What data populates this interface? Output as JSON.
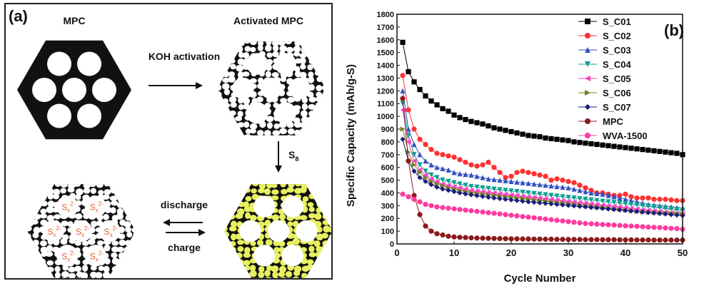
{
  "panel_a": {
    "tag": "(a)",
    "title_left": "MPC",
    "title_right": "Activated MPC",
    "arrow_top_label": "KOH activation",
    "arrow_down_label": "S",
    "arrow_down_sub": "8",
    "discharge_label": "discharge",
    "charge_label": "charge",
    "sulfide_label": "S",
    "sulfide_sub": "x",
    "sulfide_sup": "2-",
    "colors": {
      "carbon": "#111111",
      "sulfur_fill": "#e8f060",
      "sulfide_text": "#e06030"
    }
  },
  "panel_b": {
    "tag": "(b)"
  },
  "chart_data": {
    "type": "line",
    "xlabel": "Cycle Number",
    "ylabel": "Specific Capacity (mAh/g-S)",
    "xlim": [
      0,
      50
    ],
    "ylim": [
      0,
      1800
    ],
    "xticks": [
      "0",
      "10",
      "20",
      "30",
      "40",
      "50"
    ],
    "yticks": [
      "0",
      "100",
      "200",
      "300",
      "400",
      "500",
      "600",
      "700",
      "800",
      "900",
      "1000",
      "1100",
      "1200",
      "1300",
      "1400",
      "1500",
      "1600",
      "1700",
      "1800"
    ],
    "legend_position": "top-right",
    "series": [
      {
        "name": "S_C01",
        "color": "#000000",
        "marker": "square",
        "values": [
          1580,
          1350,
          1270,
          1210,
          1160,
          1120,
          1090,
          1060,
          1040,
          1010,
          990,
          975,
          960,
          950,
          940,
          925,
          910,
          900,
          890,
          880,
          870,
          860,
          850,
          845,
          840,
          830,
          825,
          820,
          815,
          810,
          800,
          795,
          790,
          785,
          780,
          775,
          770,
          765,
          760,
          755,
          750,
          745,
          740,
          735,
          730,
          725,
          720,
          715,
          710,
          700
        ]
      },
      {
        "name": "S_C02",
        "color": "#ff3030",
        "marker": "circle",
        "values": [
          1320,
          1050,
          900,
          820,
          780,
          740,
          710,
          700,
          690,
          680,
          660,
          640,
          620,
          610,
          620,
          640,
          600,
          560,
          520,
          530,
          560,
          570,
          560,
          550,
          540,
          530,
          500,
          510,
          500,
          490,
          480,
          460,
          440,
          420,
          400,
          400,
          390,
          380,
          380,
          390,
          370,
          360,
          360,
          360,
          350,
          350,
          350,
          345,
          340,
          340
        ]
      },
      {
        "name": "S_C03",
        "color": "#3050c0",
        "marker": "triangle",
        "values": [
          1200,
          900,
          780,
          700,
          650,
          620,
          600,
          590,
          580,
          560,
          550,
          545,
          540,
          530,
          520,
          510,
          505,
          500,
          495,
          490,
          485,
          480,
          475,
          470,
          465,
          460,
          455,
          450,
          445,
          440,
          430,
          420,
          410,
          400,
          395,
          390,
          380,
          370,
          360,
          350,
          340,
          330,
          320,
          310,
          305,
          300,
          295,
          290,
          285,
          280
        ]
      },
      {
        "name": "S_C04",
        "color": "#10a090",
        "marker": "triangle-down",
        "values": [
          1100,
          850,
          700,
          620,
          570,
          540,
          520,
          500,
          490,
          480,
          470,
          460,
          450,
          445,
          440,
          435,
          430,
          425,
          420,
          415,
          410,
          405,
          400,
          395,
          390,
          385,
          380,
          375,
          370,
          365,
          360,
          355,
          350,
          345,
          340,
          335,
          330,
          325,
          320,
          315,
          310,
          305,
          300,
          295,
          290,
          285,
          280,
          275,
          270,
          265
        ]
      },
      {
        "name": "S_C05",
        "color": "#ff40c0",
        "marker": "triangle-left",
        "values": [
          1050,
          800,
          650,
          580,
          540,
          510,
          490,
          470,
          460,
          450,
          440,
          430,
          420,
          415,
          410,
          405,
          400,
          395,
          390,
          385,
          380,
          375,
          370,
          365,
          360,
          355,
          350,
          345,
          340,
          335,
          330,
          325,
          320,
          315,
          310,
          305,
          300,
          295,
          290,
          285,
          280,
          275,
          270,
          265,
          260,
          255,
          250,
          245,
          240,
          235
        ]
      },
      {
        "name": "S_C06",
        "color": "#708020",
        "marker": "triangle-right",
        "values": [
          900,
          720,
          620,
          560,
          520,
          490,
          470,
          455,
          440,
          430,
          420,
          410,
          400,
          395,
          390,
          385,
          380,
          375,
          370,
          365,
          360,
          355,
          350,
          345,
          340,
          335,
          330,
          325,
          320,
          315,
          310,
          305,
          300,
          295,
          290,
          285,
          280,
          275,
          270,
          265,
          260,
          255,
          250,
          248,
          246,
          244,
          242,
          240,
          238,
          235
        ]
      },
      {
        "name": "S_C07",
        "color": "#1a1a80",
        "marker": "diamond",
        "values": [
          820,
          650,
          570,
          520,
          490,
          465,
          445,
          430,
          420,
          410,
          400,
          392,
          385,
          378,
          372,
          366,
          360,
          355,
          350,
          345,
          340,
          335,
          330,
          326,
          322,
          318,
          314,
          310,
          306,
          302,
          298,
          294,
          290,
          286,
          282,
          278,
          274,
          270,
          266,
          262,
          258,
          254,
          250,
          246,
          242,
          238,
          234,
          230,
          226,
          222
        ]
      },
      {
        "name": "MPC",
        "color": "#8b1a1a",
        "marker": "circle",
        "values": [
          1140,
          650,
          380,
          230,
          140,
          100,
          80,
          70,
          60,
          55,
          52,
          50,
          48,
          46,
          45,
          44,
          43,
          42,
          41,
          40,
          40,
          39,
          39,
          38,
          38,
          37,
          37,
          36,
          36,
          35,
          35,
          35,
          34,
          34,
          34,
          33,
          33,
          33,
          32,
          32,
          32,
          31,
          31,
          31,
          30,
          30,
          30,
          30,
          30,
          30
        ]
      },
      {
        "name": "WVA-1500",
        "color": "#ff3aa0",
        "marker": "circle",
        "values": [
          390,
          370,
          350,
          330,
          310,
          300,
          290,
          285,
          280,
          275,
          270,
          265,
          260,
          255,
          250,
          245,
          240,
          235,
          230,
          225,
          220,
          215,
          210,
          205,
          200,
          195,
          190,
          185,
          180,
          175,
          170,
          165,
          160,
          158,
          155,
          152,
          150,
          148,
          145,
          142,
          140,
          138,
          135,
          132,
          130,
          128,
          125,
          122,
          120,
          115
        ]
      }
    ]
  }
}
